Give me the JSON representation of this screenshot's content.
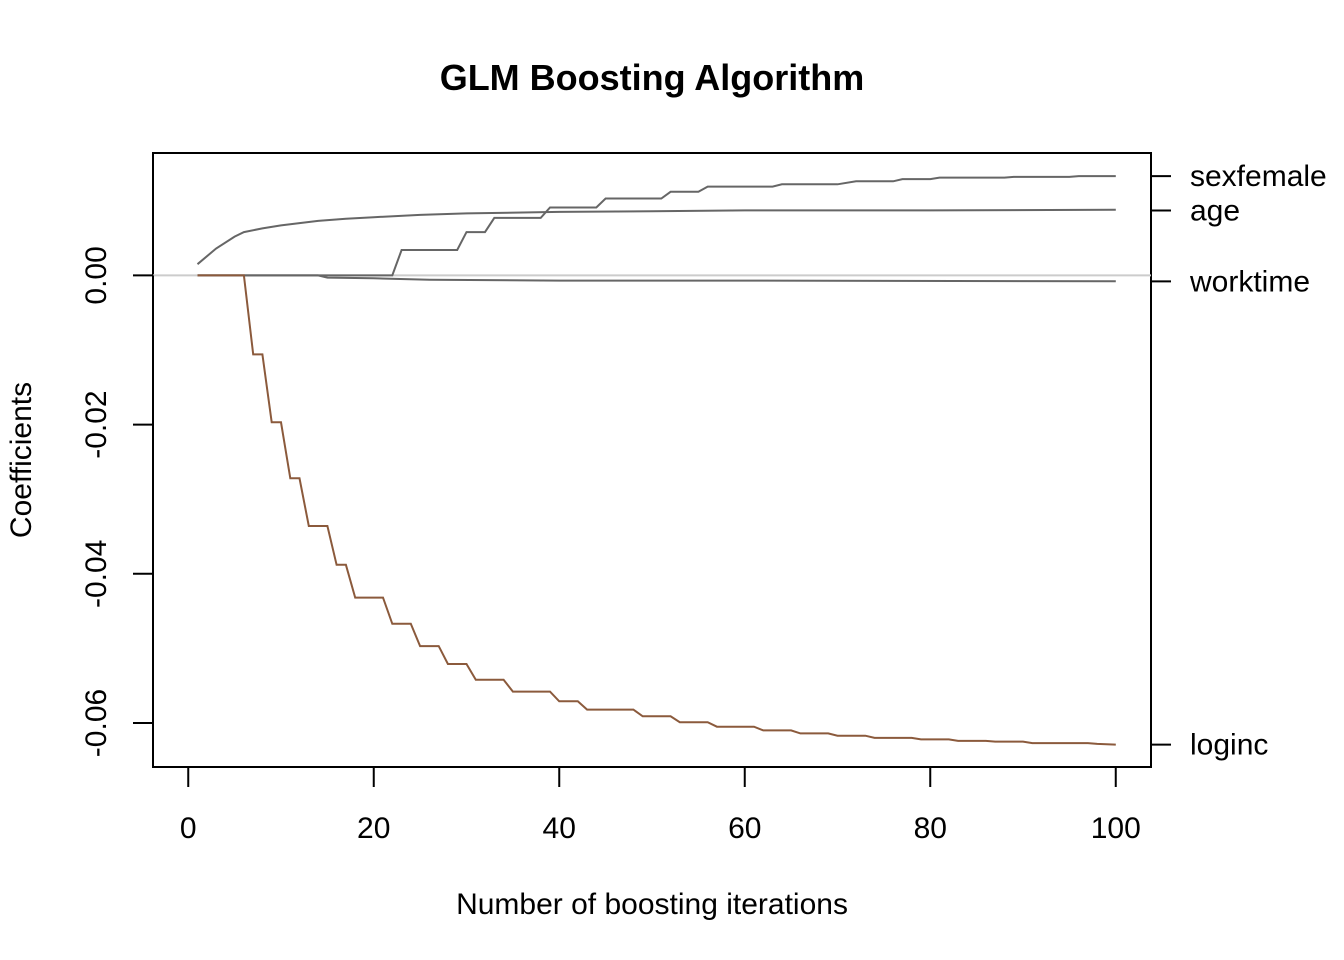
{
  "chart_data": {
    "type": "line",
    "title": "GLM Boosting Algorithm",
    "xlabel": "Number of boosting iterations",
    "ylabel": "Coefficients",
    "xlim": [
      -3.8,
      103.8
    ],
    "ylim": [
      -0.0659,
      0.0164
    ],
    "x_ticks": [
      {
        "value": 0,
        "label": "0"
      },
      {
        "value": 20,
        "label": "20"
      },
      {
        "value": 40,
        "label": "40"
      },
      {
        "value": 60,
        "label": "60"
      },
      {
        "value": 80,
        "label": "80"
      },
      {
        "value": 100,
        "label": "100"
      }
    ],
    "y_ticks": [
      {
        "value": 0.0,
        "label": "0.00"
      },
      {
        "value": -0.02,
        "label": "-0.02"
      },
      {
        "value": -0.04,
        "label": "-0.04"
      },
      {
        "value": -0.06,
        "label": "-0.06"
      }
    ],
    "reference_line": {
      "y": 0,
      "color": "#cccccc"
    },
    "series": [
      {
        "name": "sexfemale",
        "color": "#666666",
        "label_y": 0.0133,
        "step": true,
        "points": [
          [
            1,
            0
          ],
          [
            22,
            0
          ],
          [
            23,
            0.0034
          ],
          [
            29,
            0.0034
          ],
          [
            30,
            0.0058
          ],
          [
            32,
            0.0058
          ],
          [
            33,
            0.0077
          ],
          [
            38,
            0.0077
          ],
          [
            39,
            0.0091
          ],
          [
            44,
            0.0091
          ],
          [
            45,
            0.0103
          ],
          [
            51,
            0.0103
          ],
          [
            52,
            0.0112
          ],
          [
            55,
            0.0112
          ],
          [
            56,
            0.0119
          ],
          [
            63,
            0.0119
          ],
          [
            64,
            0.0122
          ],
          [
            70,
            0.0122
          ],
          [
            72,
            0.0126
          ],
          [
            76,
            0.0126
          ],
          [
            77,
            0.0129
          ],
          [
            80,
            0.0129
          ],
          [
            81,
            0.0131
          ],
          [
            88,
            0.0131
          ],
          [
            89,
            0.0132
          ],
          [
            95,
            0.0132
          ],
          [
            96,
            0.0133
          ],
          [
            100,
            0.0133
          ]
        ]
      },
      {
        "name": "age",
        "color": "#666666",
        "label_y": 0.0087,
        "step": false,
        "points": [
          [
            1,
            0.0015
          ],
          [
            3,
            0.0036
          ],
          [
            5,
            0.0052
          ],
          [
            6,
            0.0058
          ],
          [
            8,
            0.0063
          ],
          [
            10,
            0.0067
          ],
          [
            12,
            0.007
          ],
          [
            14,
            0.0073
          ],
          [
            17,
            0.0076
          ],
          [
            20,
            0.0078
          ],
          [
            25,
            0.0081
          ],
          [
            30,
            0.0083
          ],
          [
            40,
            0.0085
          ],
          [
            50,
            0.0086
          ],
          [
            60,
            0.0087
          ],
          [
            80,
            0.0087
          ],
          [
            100,
            0.0088
          ]
        ]
      },
      {
        "name": "worktime",
        "color": "#666666",
        "label_y": -0.0008,
        "step": false,
        "points": [
          [
            1,
            0
          ],
          [
            14,
            0
          ],
          [
            15,
            -0.0003
          ],
          [
            20,
            -0.0004
          ],
          [
            26,
            -0.0006
          ],
          [
            40,
            -0.0007
          ],
          [
            60,
            -0.0007
          ],
          [
            100,
            -0.0008
          ]
        ]
      },
      {
        "name": "loginc",
        "color": "#8b5a3c",
        "label_y": -0.0629,
        "step": true,
        "points": [
          [
            1,
            0
          ],
          [
            6,
            0
          ],
          [
            7,
            -0.0106
          ],
          [
            8,
            -0.0106
          ],
          [
            9,
            -0.0197
          ],
          [
            10,
            -0.0197
          ],
          [
            11,
            -0.0272
          ],
          [
            12,
            -0.0272
          ],
          [
            13,
            -0.0336
          ],
          [
            15,
            -0.0336
          ],
          [
            16,
            -0.0388
          ],
          [
            17,
            -0.0388
          ],
          [
            18,
            -0.0432
          ],
          [
            21,
            -0.0432
          ],
          [
            22,
            -0.0467
          ],
          [
            24,
            -0.0467
          ],
          [
            25,
            -0.0497
          ],
          [
            27,
            -0.0497
          ],
          [
            28,
            -0.0521
          ],
          [
            30,
            -0.0521
          ],
          [
            31,
            -0.0542
          ],
          [
            34,
            -0.0542
          ],
          [
            35,
            -0.0558
          ],
          [
            39,
            -0.0558
          ],
          [
            40,
            -0.0571
          ],
          [
            42,
            -0.0571
          ],
          [
            43,
            -0.0582
          ],
          [
            48,
            -0.0582
          ],
          [
            49,
            -0.0591
          ],
          [
            52,
            -0.0591
          ],
          [
            53,
            -0.0599
          ],
          [
            56,
            -0.0599
          ],
          [
            57,
            -0.0605
          ],
          [
            61,
            -0.0605
          ],
          [
            62,
            -0.061
          ],
          [
            65,
            -0.061
          ],
          [
            66,
            -0.0614
          ],
          [
            69,
            -0.0614
          ],
          [
            70,
            -0.0617
          ],
          [
            73,
            -0.0617
          ],
          [
            74,
            -0.062
          ],
          [
            78,
            -0.062
          ],
          [
            79,
            -0.0622
          ],
          [
            82,
            -0.0622
          ],
          [
            83,
            -0.0624
          ],
          [
            86,
            -0.0624
          ],
          [
            87,
            -0.0625
          ],
          [
            90,
            -0.0625
          ],
          [
            91,
            -0.0627
          ],
          [
            97,
            -0.0627
          ],
          [
            98,
            -0.0628
          ],
          [
            100,
            -0.0629
          ]
        ]
      }
    ]
  }
}
